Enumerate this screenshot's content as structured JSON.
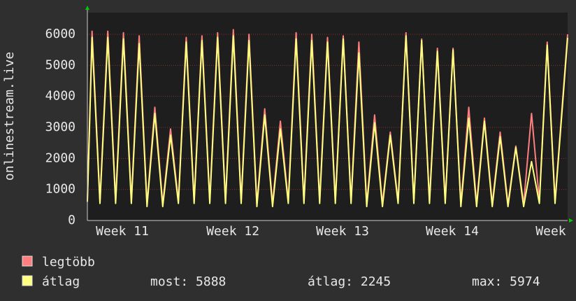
{
  "chart_data": {
    "type": "line",
    "y_label": "onlinestream.live",
    "x": [
      0,
      0.3,
      0.8,
      1.3,
      1.8,
      2.3,
      2.8,
      3.3,
      3.8,
      4.3,
      4.8,
      5.3,
      5.8,
      6.3,
      6.8,
      7.3,
      7.8,
      8.3,
      8.8,
      9.3,
      9.8,
      10.3,
      10.8,
      11.3,
      11.8,
      12.3,
      12.8,
      13.3,
      13.8,
      14.3,
      14.8,
      15.3,
      15.8,
      16.3,
      16.8,
      17.3,
      17.8,
      18.3,
      18.8,
      19.3,
      19.8,
      20.3,
      20.8,
      21.3,
      21.8,
      22.3,
      22.8,
      23.3,
      23.8,
      24.3,
      24.8,
      25.3,
      25.8,
      26.3,
      26.8,
      27.3,
      27.8,
      28.3,
      28.8,
      29.3,
      29.8,
      30.6
    ],
    "xlim": [
      0,
      30.6
    ],
    "xticks": [
      {
        "value": 2.23,
        "label": "Week 11"
      },
      {
        "value": 9.27,
        "label": "Week 12"
      },
      {
        "value": 16.26,
        "label": "Week 13"
      },
      {
        "value": 23.25,
        "label": "Week 14"
      },
      {
        "value": 29.53,
        "label": "Week"
      }
    ],
    "ylim": [
      0,
      6700
    ],
    "yticks": [
      0,
      1000,
      2000,
      3000,
      4000,
      5000,
      6000
    ],
    "grid": true,
    "series": [
      {
        "name": "legtöbb",
        "color": "#ff7f7f",
        "values": [
          650,
          6100,
          630,
          6100,
          630,
          6050,
          630,
          5950,
          530,
          3650,
          530,
          2950,
          630,
          5900,
          630,
          5950,
          630,
          6050,
          630,
          6150,
          630,
          6000,
          530,
          3600,
          530,
          3200,
          630,
          6050,
          630,
          6000,
          630,
          5900,
          630,
          5950,
          630,
          5750,
          530,
          3400,
          530,
          2850,
          630,
          6050,
          630,
          5850,
          630,
          5550,
          630,
          5550,
          530,
          3650,
          530,
          3300,
          530,
          2850,
          530,
          2400,
          530,
          3450,
          630,
          5750,
          630,
          6000
        ]
      },
      {
        "name": "átlag",
        "color": "#ffff80",
        "values": [
          600,
          5900,
          550,
          5900,
          550,
          5850,
          550,
          5700,
          450,
          3450,
          450,
          2750,
          550,
          5750,
          550,
          5800,
          550,
          5900,
          550,
          5950,
          550,
          5800,
          450,
          3400,
          450,
          2950,
          550,
          5850,
          550,
          5800,
          550,
          5750,
          550,
          5850,
          550,
          5400,
          450,
          3150,
          450,
          2750,
          550,
          5950,
          550,
          5800,
          550,
          5450,
          550,
          5500,
          450,
          3300,
          450,
          3200,
          450,
          2700,
          450,
          2350,
          450,
          1900,
          550,
          5650,
          550,
          5888
        ]
      }
    ],
    "stats": [
      "most: 5888",
      "átlag: 2245",
      "max: 5974"
    ]
  }
}
